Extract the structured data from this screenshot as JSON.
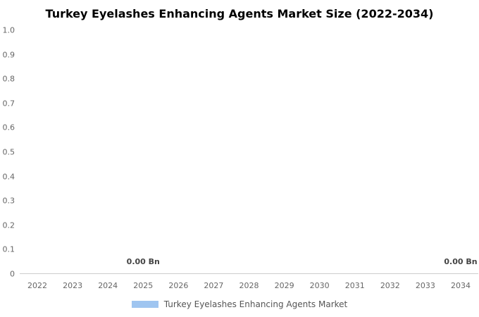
{
  "chart_data": {
    "type": "bar",
    "title": "Turkey Eyelashes Enhancing Agents Market Size (2022-2034)",
    "categories": [
      "2022",
      "2023",
      "2024",
      "2025",
      "2026",
      "2027",
      "2028",
      "2029",
      "2030",
      "2031",
      "2032",
      "2033",
      "2034"
    ],
    "series": [
      {
        "name": "Turkey Eyelashes Enhancing Agents Market",
        "values": [
          0,
          0,
          0,
          0,
          0,
          0,
          0,
          0,
          0,
          0,
          0,
          0,
          0
        ],
        "color": "#9fc5f0"
      }
    ],
    "xlabel": "",
    "ylabel": "",
    "ylim": [
      0,
      1.0
    ],
    "ytick_labels": [
      "1.0",
      "0.9",
      "0.8",
      "0.7",
      "0.6",
      "0.5",
      "0.4",
      "0.3",
      "0.2",
      "0.1",
      "0"
    ],
    "data_labels": [
      {
        "category": "2025",
        "text": "0.00 Bn"
      },
      {
        "category": "2034",
        "text": "0.00 Bn"
      }
    ],
    "grid": false,
    "legend_position": "bottom"
  },
  "colors": {
    "series": "#9fc5f0",
    "title_text": "#000000",
    "axis_text": "#666666",
    "data_label_text": "#444444",
    "axis_line": "#cccccc",
    "background": "#ffffff"
  }
}
